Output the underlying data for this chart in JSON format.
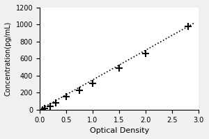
{
  "x_data": [
    0.05,
    0.1,
    0.2,
    0.3,
    0.5,
    0.75,
    1.0,
    1.5,
    2.0,
    2.8
  ],
  "y_data": [
    0,
    15,
    40,
    80,
    150,
    230,
    310,
    490,
    660,
    980
  ],
  "trendline_x": [
    0.0,
    2.9
  ],
  "trendline_y": [
    0,
    1015
  ],
  "xlabel": "Optical Density",
  "ylabel": "Concentration(pg/mL)",
  "xlim": [
    0,
    3.0
  ],
  "ylim": [
    0,
    1200
  ],
  "xticks": [
    0,
    0.5,
    1,
    1.5,
    2,
    2.5,
    3
  ],
  "yticks": [
    0,
    200,
    400,
    600,
    800,
    1000,
    1200
  ],
  "marker": "+",
  "marker_color": "#000000",
  "line_color": "#000000",
  "line_style": "dotted",
  "background_color": "#f0f0f0",
  "plot_bg_color": "#ffffff",
  "marker_size": 7,
  "marker_linewidth": 1.5,
  "xlabel_fontsize": 8,
  "ylabel_fontsize": 7,
  "tick_fontsize": 7
}
